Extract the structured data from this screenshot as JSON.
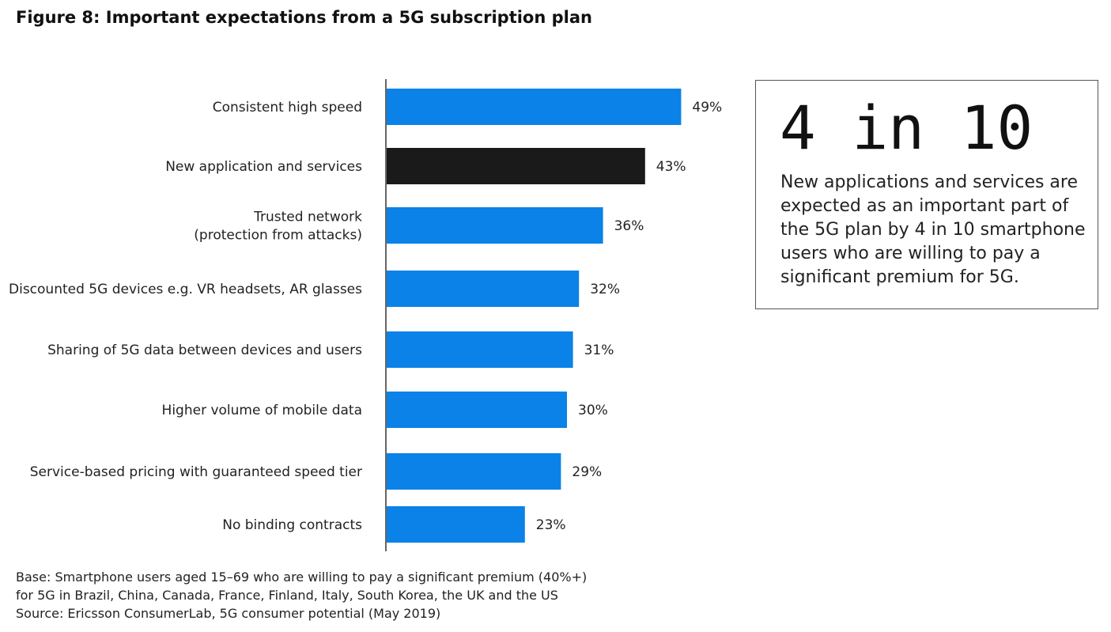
{
  "figure_title": "Figure 8: Important expectations from a 5G subscription plan",
  "callout": {
    "stat": "4 in 10",
    "text": "New applications and services are expected as an important part of the 5G plan by 4 in 10 smartphone users who are willing to pay a significant premium for 5G."
  },
  "footnote": {
    "lines": [
      "Base: Smartphone users aged 15–69 who are willing to pay a significant premium (40%+)",
      "for 5G in Brazil, China, Canada, France, Finland, Italy, South Korea, the UK and the US",
      "Source: Ericsson ConsumerLab, 5G consumer potential (May 2019)"
    ]
  },
  "colors": {
    "primary_bar": "#0A82E8",
    "highlight_bar": "#1A1A1A",
    "axis": "#333333"
  },
  "chart_data": {
    "type": "bar",
    "orientation": "horizontal",
    "title": "Figure 8: Important expectations from a 5G subscription plan",
    "xlabel": "",
    "ylabel": "",
    "unit": "%",
    "categories": [
      [
        "Consistent high speed"
      ],
      [
        "New application and services"
      ],
      [
        "Trusted network",
        "(protection from attacks)"
      ],
      [
        "Discounted 5G devices e.g. VR headsets, AR glasses"
      ],
      [
        "Sharing of 5G data between devices and users"
      ],
      [
        "Higher volume of mobile data"
      ],
      [
        "Service-based pricing with guaranteed speed tier"
      ],
      [
        "No binding contracts"
      ]
    ],
    "values": [
      49,
      43,
      36,
      32,
      31,
      30,
      29,
      23
    ],
    "value_labels": [
      "49%",
      "43%",
      "36%",
      "32%",
      "31%",
      "30%",
      "29%",
      "23%"
    ],
    "highlight_index": 1,
    "xlim": [
      0,
      100
    ],
    "grid": false,
    "legend": "none"
  }
}
